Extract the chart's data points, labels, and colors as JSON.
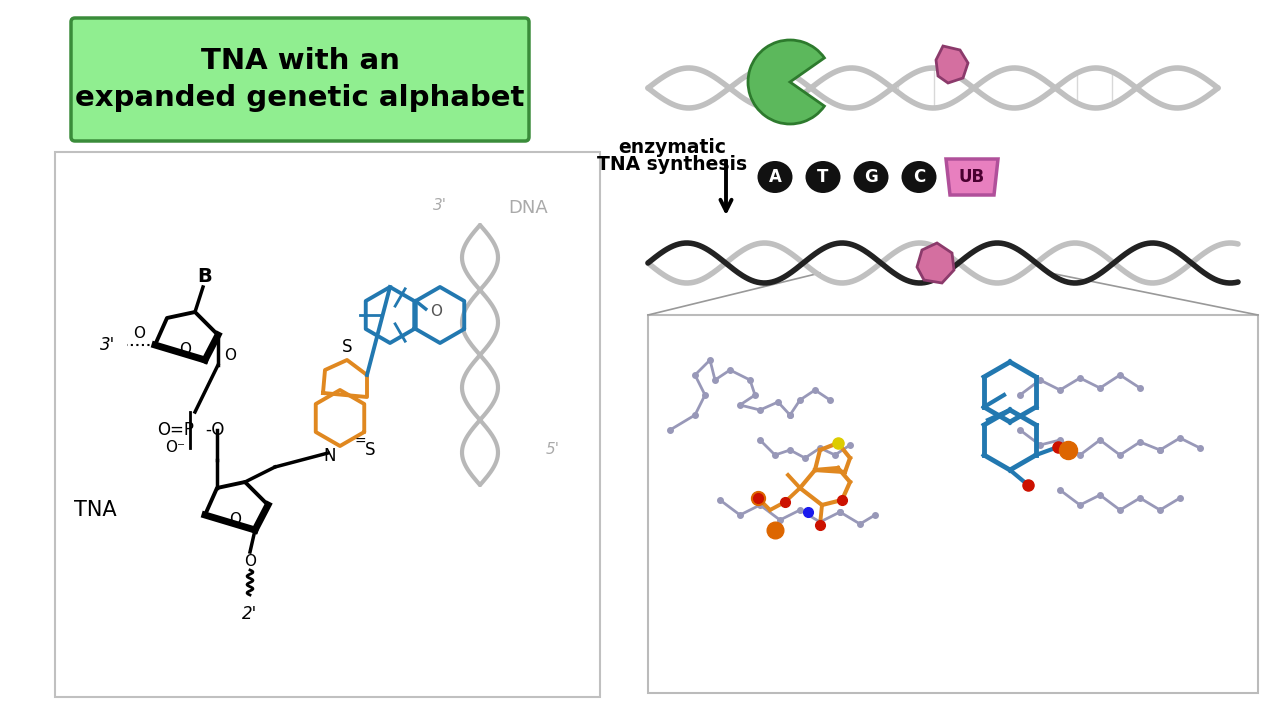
{
  "background_color": "#ffffff",
  "box_label": "TNA with an\nexpanded genetic alphabet",
  "box_bg_color": "#90EE90",
  "box_border_color": "#3a8c3a",
  "box_text_color": "#000000",
  "enzymatic_text_line1": "enzymatic",
  "enzymatic_text_line2": "TNA synthesis",
  "bases": [
    "A",
    "T",
    "G",
    "C"
  ],
  "base_bg_color": "#111111",
  "ub_color": "#e87fbf",
  "ub_border_color": "#b0509a",
  "ub_text": "UB",
  "tna_label": "TNA",
  "dna_label": "DNA",
  "gray_label_color": "#999999",
  "blue_color": "#2278b0",
  "orange_color": "#e08820",
  "black": "#000000",
  "helix_gray": "#b0b0b0",
  "helix_dark": "#333333",
  "enzyme_green": "#5cb85c",
  "enzyme_border": "#2d7a2d",
  "nucleotide_pink": "#d46fa0",
  "nucleotide_border": "#8b3a6b",
  "panel_border": "#c0c0c0",
  "zoom_border": "#bbbbbb",
  "zoom_line_color": "#aaaaaa",
  "crystal_gray": "#9898b8",
  "crystal_blue": "#2278b0",
  "crystal_orange": "#e08820",
  "crystal_red": "#cc1100",
  "crystal_phosphorus": "#dd6600",
  "crystal_yellow": "#ddcc00"
}
